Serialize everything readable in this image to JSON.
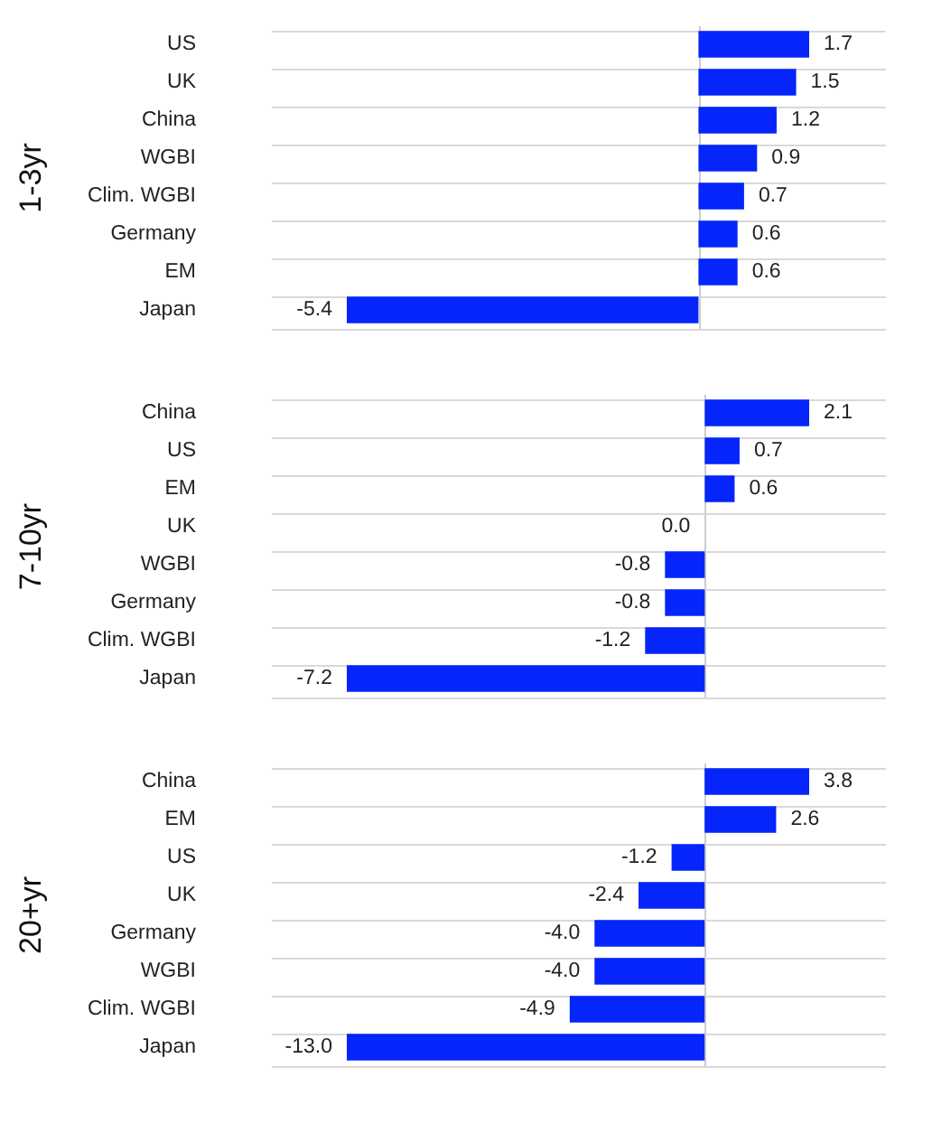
{
  "chart_data": [
    {
      "type": "bar",
      "orientation": "horizontal",
      "ylabel": "1-3yr",
      "categories": [
        "US",
        "UK",
        "China",
        "WGBI",
        "Clim. WGBI",
        "Germany",
        "EM",
        "Japan"
      ],
      "values": [
        1.7,
        1.5,
        1.2,
        0.9,
        0.7,
        0.6,
        0.6,
        -5.4
      ],
      "value_labels": [
        "1.7",
        "1.5",
        "1.2",
        "0.9",
        "0.7",
        "0.6",
        "0.6",
        "-5.4"
      ],
      "color": "#0525fb",
      "grid": "y",
      "tick_labels": "y"
    },
    {
      "type": "bar",
      "orientation": "horizontal",
      "ylabel": "7-10yr",
      "categories": [
        "China",
        "US",
        "EM",
        "UK",
        "WGBI",
        "Germany",
        "Clim. WGBI",
        "Japan"
      ],
      "values": [
        2.1,
        0.7,
        0.6,
        0.0,
        -0.8,
        -0.8,
        -1.2,
        -7.2
      ],
      "value_labels": [
        "2.1",
        "0.7",
        "0.6",
        "0.0",
        "-0.8",
        "-0.8",
        "-1.2",
        "-7.2"
      ],
      "color": "#0525fb",
      "grid": "y",
      "tick_labels": "y"
    },
    {
      "type": "bar",
      "orientation": "horizontal",
      "ylabel": "20+yr",
      "categories": [
        "China",
        "EM",
        "US",
        "UK",
        "Germany",
        "WGBI",
        "Clim. WGBI",
        "Japan"
      ],
      "values": [
        3.8,
        2.6,
        -1.2,
        -2.4,
        -4.0,
        -4.0,
        -4.9,
        -13.0
      ],
      "value_labels": [
        "3.8",
        "2.6",
        "-1.2",
        "-2.4",
        "-4.0",
        "-4.0",
        "-4.9",
        "-13.0"
      ],
      "color": "#0525fb",
      "grid": "y",
      "tick_labels": "y"
    }
  ]
}
